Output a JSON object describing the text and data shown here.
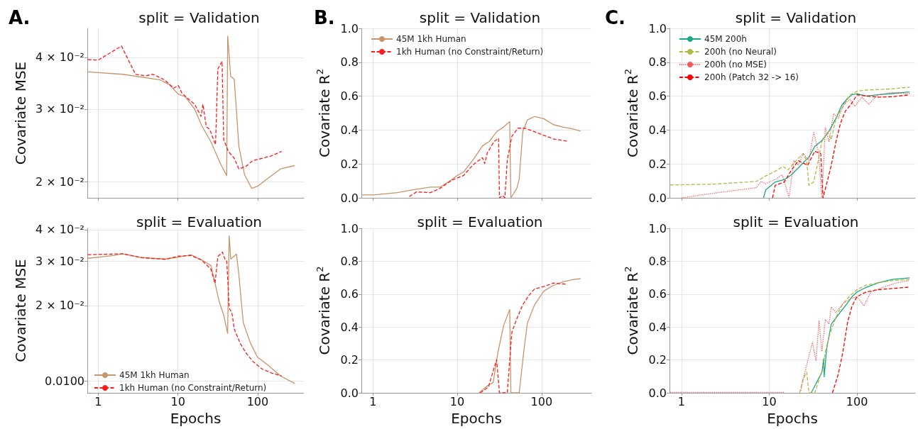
{
  "chart_data": [
    {
      "type": "line",
      "title": "split = Validation",
      "ylabel": "Covariate MSE",
      "annotations": [
        "A."
      ],
      "log": "xy",
      "grid": true,
      "legend": false,
      "tick_labels": "y",
      "xlim": [
        0.73,
        380
      ],
      "xticks": [
        1,
        10,
        100
      ],
      "ylim": [
        0.0183,
        0.047
      ],
      "yticks": [
        {
          "value": 0.04,
          "label": "4 × 10⁻²"
        },
        {
          "value": 0.03,
          "label": "3 × 10⁻²"
        },
        {
          "value": 0.02,
          "label": "2 × 10⁻²"
        }
      ],
      "series": [
        {
          "color": "#c8946a",
          "line_style": "solid",
          "x": [
            0.74,
            2.02,
            5.93,
            7.75,
            10.1,
            12.4,
            16.2,
            19.8,
            25.9,
            33.9,
            40.9,
            42.1,
            45.9,
            50.9,
            58.1,
            68.6,
            84.1,
            99.1,
            139,
            194,
            292
          ],
          "values": [
            0.0369,
            0.0364,
            0.0353,
            0.0344,
            0.0326,
            0.0321,
            0.03,
            0.0274,
            0.025,
            0.0222,
            0.0207,
            0.045,
            0.036,
            0.0354,
            0.0244,
            0.0208,
            0.0193,
            0.0195,
            0.0205,
            0.0215,
            0.0219
          ]
        },
        {
          "color": "#ff1a1a",
          "line_style": "dashed",
          "x": [
            0.74,
            1,
            1.96,
            2.93,
            3.96,
            4.84,
            6.77,
            8.87,
            10.1,
            11.2,
            13.3,
            16.2,
            19.5,
            20.6,
            22.7,
            25,
            29.6,
            31.7,
            35.8,
            37.5,
            42.9,
            50.9,
            58.1,
            71,
            86.6,
            113,
            148,
            200
          ],
          "values": [
            0.0395,
            0.0394,
            0.0426,
            0.0364,
            0.0361,
            0.0364,
            0.0353,
            0.0337,
            0.0342,
            0.0328,
            0.0318,
            0.0308,
            0.0288,
            0.0308,
            0.0272,
            0.0268,
            0.0246,
            0.0375,
            0.0391,
            0.0253,
            0.0237,
            0.0228,
            0.0215,
            0.0218,
            0.0225,
            0.0228,
            0.0231,
            0.0237
          ]
        }
      ]
    },
    {
      "type": "line",
      "title": "split = Validation",
      "ylabel": "Covariate R$^{2}$",
      "annotations": [
        "B."
      ],
      "log": "x",
      "grid": true,
      "legend": "top left",
      "tick_labels": "y",
      "xlim": [
        0.73,
        390
      ],
      "xticks": [
        1,
        10,
        100
      ],
      "ylim": [
        0,
        1
      ],
      "yticks": [
        {
          "value": 0,
          "label": "0.0"
        },
        0.2,
        0.4,
        0.6,
        0.8,
        {
          "value": 1,
          "label": "1.0"
        }
      ],
      "series": [
        {
          "name": "45M 1kh Human",
          "color": "#c8946a",
          "line_style": "solid",
          "x": [
            0.74,
            1.03,
            1.95,
            3.07,
            4.82,
            6.25,
            8.07,
            10,
            11.9,
            15.4,
            19.9,
            24.1,
            29.3,
            35.5,
            41.9,
            43.3,
            50.9,
            54.3,
            59.8,
            67.9,
            82.6,
            106,
            138,
            178,
            231,
            290
          ],
          "values": [
            0.017,
            0.017,
            0.031,
            0.049,
            0.063,
            0.063,
            0.097,
            0.132,
            0.153,
            0.223,
            0.306,
            0.334,
            0.39,
            0.418,
            0.45,
            0.0,
            0.056,
            0.111,
            0.39,
            0.46,
            0.48,
            0.467,
            0.432,
            0.418,
            0.407,
            0.394
          ]
        },
        {
          "name": "1kh Human (no Constraint/Return)",
          "color": "#ff1a1a",
          "line_style": "dashed",
          "x": [
            2.7,
            3.28,
            4.82,
            6.25,
            8.6,
            11.9,
            15.4,
            19.9,
            21.2,
            22.7,
            27.5,
            30.9,
            31.7,
            34.5,
            36.7,
            39.2,
            44.4,
            52.5,
            63.5,
            82.6,
            106,
            138,
            202
          ],
          "values": [
            0.007,
            0.035,
            0.031,
            0.056,
            0.104,
            0.132,
            0.195,
            0.237,
            0.202,
            0.265,
            0.334,
            0.351,
            0.0,
            0.014,
            0.0,
            0.223,
            0.362,
            0.411,
            0.411,
            0.39,
            0.369,
            0.348,
            0.334
          ]
        }
      ]
    },
    {
      "type": "line",
      "title": "split = Validation",
      "ylabel": "Covariate R$^{2}$",
      "annotations": [
        "C."
      ],
      "log": "x",
      "grid": true,
      "legend": "top left",
      "tick_labels": "y",
      "xlim": [
        0.73,
        460
      ],
      "xticks": [
        1,
        10,
        100
      ],
      "ylim": [
        0,
        1
      ],
      "yticks": [
        {
          "value": 0,
          "label": "0.0"
        },
        0.2,
        0.4,
        0.6,
        0.8,
        {
          "value": 1,
          "label": "1.0"
        }
      ],
      "series": [
        {
          "name": "45M 200h",
          "color": "#1aa886",
          "line_style": "solid",
          "x": [
            8.6,
            9.1,
            11.7,
            14.9,
            17.9,
            21.5,
            24.3,
            28.3,
            33,
            39.8,
            47.9,
            57.6,
            67,
            78.3,
            88,
            100,
            127,
            174,
            250,
            398
          ],
          "values": [
            0.0,
            0.046,
            0.094,
            0.108,
            0.136,
            0.178,
            0.206,
            0.24,
            0.303,
            0.338,
            0.393,
            0.469,
            0.546,
            0.588,
            0.608,
            0.615,
            0.601,
            0.608,
            0.615,
            0.625
          ]
        },
        {
          "name": "200h (no Neural)",
          "color": "#b0b848",
          "line_style": "dashed",
          "x": [
            0.74,
            2.36,
            7.14,
            9.1,
            11.7,
            14.4,
            16.3,
            20.2,
            24.3,
            26.7,
            28.3,
            32.1,
            35.3,
            39.8,
            46.4,
            50.9,
            57.6,
            69.2,
            83.6,
            100,
            127,
            174,
            250,
            398
          ],
          "values": [
            0.076,
            0.081,
            0.097,
            0.129,
            0.157,
            0.185,
            0.164,
            0.219,
            0.261,
            0.219,
            0.074,
            0.094,
            0.192,
            0.331,
            0.386,
            0.344,
            0.469,
            0.539,
            0.608,
            0.629,
            0.636,
            0.639,
            0.643,
            0.653
          ]
        },
        {
          "name": "200h (no MSE)",
          "color": "#f05a5a",
          "line_style": "dotted",
          "x": [
            1,
            2.36,
            4.37,
            7.14,
            8.1,
            9.1,
            11.7,
            14,
            14.9,
            16.8,
            19.1,
            21.5,
            24.3,
            28.3,
            32.1,
            36.3,
            39.8,
            43.6,
            47.9,
            54.2,
            61,
            71.2,
            83.6,
            94.3,
            113,
            136,
            174,
            250,
            398
          ],
          "values": [
            0.0,
            0.028,
            0.046,
            0.06,
            0.097,
            0.083,
            0.108,
            0.136,
            0.094,
            0.004,
            0.219,
            0.192,
            0.261,
            0.219,
            0.386,
            0.275,
            0.0,
            0.414,
            0.331,
            0.497,
            0.469,
            0.553,
            0.581,
            0.539,
            0.594,
            0.553,
            0.608,
            0.622,
            0.615
          ]
        },
        {
          "name": "200h (Patch 32 -> 16)",
          "color": "#ff0000",
          "line_style": "dashed",
          "x": [
            10.9,
            11.7,
            14.9,
            17.9,
            21.5,
            27.4,
            33,
            38.6,
            41,
            46.4,
            50.9,
            57.6,
            65,
            73.6,
            85.8,
            100,
            127,
            174,
            250,
            398
          ],
          "values": [
            0.0,
            0.074,
            0.094,
            0.164,
            0.219,
            0.192,
            0.275,
            0.261,
            0.0,
            0.108,
            0.192,
            0.331,
            0.442,
            0.511,
            0.553,
            0.608,
            0.601,
            0.594,
            0.597,
            0.608
          ]
        }
      ]
    },
    {
      "type": "line",
      "title": "split = Evaluation",
      "xlabel": "Epochs",
      "ylabel": "Covariate MSE",
      "log": "xy",
      "grid": true,
      "legend": "bottom left",
      "xlim": [
        0.73,
        380
      ],
      "xticks": [
        1,
        10,
        100
      ],
      "ylim": [
        0.009,
        0.0405
      ],
      "yticks": [
        {
          "value": 0.04,
          "label": "4 × 10⁻²"
        },
        {
          "value": 0.03,
          "label": "3 × 10⁻²"
        },
        {
          "value": 0.02,
          "label": "2 × 10⁻²"
        },
        {
          "value": 0.01,
          "label": "0.0100"
        }
      ],
      "series": [
        {
          "name": "45M 1kh Human",
          "color": "#c8946a",
          "line_style": "solid",
          "x": [
            0.74,
            1.55,
            2.02,
            3.46,
            6.9,
            10.1,
            14.6,
            21.2,
            26,
            33,
            37.5,
            42,
            43.9,
            46,
            54.2,
            58,
            66,
            81,
            99,
            139,
            194,
            292
          ],
          "values": [
            0.0308,
            0.0316,
            0.0321,
            0.031,
            0.0306,
            0.0311,
            0.0318,
            0.03,
            0.0288,
            0.0207,
            0.0183,
            0.0155,
            0.0378,
            0.0306,
            0.032,
            0.0267,
            0.0171,
            0.0142,
            0.0125,
            0.0115,
            0.0105,
            0.0098
          ]
        },
        {
          "name": "1kh Human (no Constraint/Return)",
          "color": "#ff1a1a",
          "line_style": "dashed",
          "x": [
            0.74,
            2.02,
            3.46,
            6.9,
            10.1,
            14.6,
            19.8,
            25.9,
            29.2,
            31.7,
            36.2,
            38.8,
            41,
            44,
            47.5,
            51,
            60,
            71,
            87,
            113,
            148,
            200
          ],
          "values": [
            0.0318,
            0.0321,
            0.031,
            0.0305,
            0.0314,
            0.0316,
            0.0303,
            0.0279,
            0.0245,
            0.0313,
            0.0326,
            0.0306,
            0.03,
            0.0195,
            0.0187,
            0.0161,
            0.0142,
            0.013,
            0.012,
            0.0112,
            0.0108,
            0.0105
          ]
        }
      ]
    },
    {
      "type": "line",
      "title": "split = Evaluation",
      "xlabel": "Epochs",
      "ylabel": "Covariate R$^{2}$",
      "log": "x",
      "grid": true,
      "legend": false,
      "xlim": [
        0.73,
        390
      ],
      "xticks": [
        1,
        10,
        100
      ],
      "ylim": [
        0,
        1
      ],
      "yticks": [
        {
          "value": 0,
          "label": "0.0"
        },
        0.2,
        0.4,
        0.6,
        0.8,
        {
          "value": 1,
          "label": "1.0"
        }
      ],
      "series": [
        {
          "color": "#c8946a",
          "line_style": "solid",
          "x": [
            18.1,
            22.7,
            26.7,
            30.3,
            35.5,
            41.9,
            43.3,
            54.3,
            61.7,
            67.9,
            82.6,
            106,
            138,
            178,
            231,
            290
          ],
          "values": [
            0.0,
            0.042,
            0.063,
            0.243,
            0.41,
            0.507,
            0.0,
            0.0,
            0.257,
            0.424,
            0.535,
            0.618,
            0.653,
            0.674,
            0.688,
            0.694
          ]
        },
        {
          "color": "#ff1a1a",
          "line_style": "dashed",
          "x": [
            18.7,
            23.4,
            29.3,
            31.7,
            39.2,
            44.4,
            50.9,
            59.8,
            70.2,
            82.6,
            106,
            138,
            202
          ],
          "values": [
            0.0,
            0.035,
            0.201,
            0.0,
            0.0,
            0.368,
            0.451,
            0.535,
            0.59,
            0.632,
            0.646,
            0.667,
            0.66
          ]
        }
      ]
    },
    {
      "type": "line",
      "title": "split = Evaluation",
      "xlabel": "Epochs",
      "ylabel": "Covariate R$^{2}$",
      "log": "x",
      "grid": true,
      "legend": false,
      "xlim": [
        0.73,
        460
      ],
      "xticks": [
        1,
        10,
        100
      ],
      "ylim": [
        0,
        1
      ],
      "yticks": [
        {
          "value": 0,
          "label": "0.0"
        },
        0.2,
        0.4,
        0.6,
        0.8,
        {
          "value": 1,
          "label": "1.0"
        }
      ],
      "series": [
        {
          "color": "#1aa886",
          "line_style": "solid",
          "x": [
            30.1,
            34.1,
            39.8,
            41.8,
            42.3,
            45,
            50.9,
            61,
            73.6,
            88,
            100,
            127,
            174,
            250,
            398
          ],
          "values": [
            0.0,
            0.056,
            0.125,
            0.209,
            0.097,
            0.265,
            0.418,
            0.474,
            0.529,
            0.585,
            0.613,
            0.641,
            0.669,
            0.689,
            0.699
          ]
        },
        {
          "color": "#b0b848",
          "line_style": "dashed",
          "x": [
            22.2,
            24.3,
            26.7,
            28.3,
            33,
            38.6,
            41,
            43.6,
            49.3,
            57.6,
            69.2,
            83.6,
            100,
            127,
            174,
            250,
            398
          ],
          "values": [
            0.0,
            0.084,
            0.125,
            0.0,
            0.0,
            0.111,
            0.139,
            0.251,
            0.362,
            0.46,
            0.543,
            0.592,
            0.627,
            0.655,
            0.669,
            0.682,
            0.689
          ]
        },
        {
          "color": "#f05a5a",
          "line_style": "dotted",
          "x": [
            0.74,
            14.9,
            18,
            22.9,
            25.1,
            28.3,
            31.1,
            34.1,
            36.9,
            39.8,
            43.6,
            47.9,
            50.9,
            57.6,
            69.2,
            83.6,
            100,
            120,
            144,
            196,
            284,
            398
          ],
          "values": [
            0.003,
            0.003,
            null,
            0.014,
            0.111,
            0.223,
            0.306,
            0.195,
            0.439,
            0.251,
            0.446,
            0.418,
            0.522,
            0.487,
            0.543,
            0.571,
            0.585,
            0.529,
            0.613,
            0.641,
            0.669,
            0.682
          ]
        },
        {
          "color": "#ff0000",
          "line_style": "dashed",
          "x": [
            52.5,
            61,
            69.2,
            78.3,
            88,
            100,
            127,
            174,
            250,
            398
          ],
          "values": [
            0.0,
            0.111,
            0.251,
            0.432,
            0.529,
            0.585,
            0.613,
            0.627,
            0.634,
            0.643
          ]
        }
      ]
    }
  ]
}
